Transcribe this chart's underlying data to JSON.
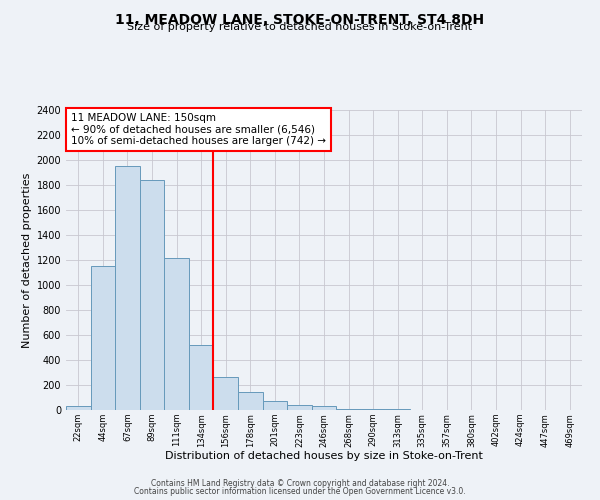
{
  "title": "11, MEADOW LANE, STOKE-ON-TRENT, ST4 8DH",
  "subtitle": "Size of property relative to detached houses in Stoke-on-Trent",
  "xlabel": "Distribution of detached houses by size in Stoke-on-Trent",
  "ylabel": "Number of detached properties",
  "bar_labels": [
    "22sqm",
    "44sqm",
    "67sqm",
    "89sqm",
    "111sqm",
    "134sqm",
    "156sqm",
    "178sqm",
    "201sqm",
    "223sqm",
    "246sqm",
    "268sqm",
    "290sqm",
    "313sqm",
    "335sqm",
    "357sqm",
    "380sqm",
    "402sqm",
    "424sqm",
    "447sqm",
    "469sqm"
  ],
  "bar_values": [
    30,
    1150,
    1950,
    1840,
    1220,
    520,
    265,
    145,
    75,
    40,
    35,
    12,
    10,
    5,
    2,
    2,
    1,
    1,
    0,
    0,
    0
  ],
  "bar_color": "#ccdded",
  "bar_edge_color": "#6699bb",
  "vline_x": 5.5,
  "vline_color": "red",
  "annotation_text": "11 MEADOW LANE: 150sqm\n← 90% of detached houses are smaller (6,546)\n10% of semi-detached houses are larger (742) →",
  "annotation_box_color": "white",
  "annotation_box_edge": "red",
  "ylim": [
    0,
    2400
  ],
  "yticks": [
    0,
    200,
    400,
    600,
    800,
    1000,
    1200,
    1400,
    1600,
    1800,
    2000,
    2200,
    2400
  ],
  "footer1": "Contains HM Land Registry data © Crown copyright and database right 2024.",
  "footer2": "Contains public sector information licensed under the Open Government Licence v3.0.",
  "bg_color": "#eef2f7",
  "grid_color": "#c8c8d0"
}
